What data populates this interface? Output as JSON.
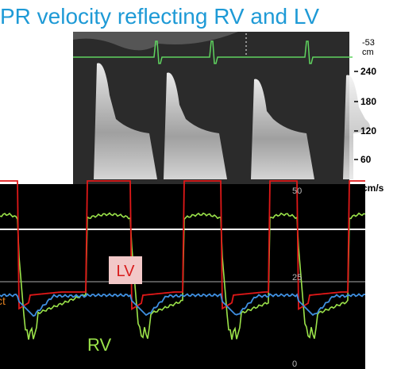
{
  "title": "PR velocity reflecting RV and LV",
  "doppler": {
    "depth_labels": [
      "-53",
      "cm"
    ],
    "velocity_scale": [
      "240",
      "180",
      "120",
      "60"
    ],
    "unit": "cm/s"
  },
  "pressure": {
    "scale": [
      "50",
      "25",
      "0"
    ],
    "labels": {
      "lv": "LV",
      "rv": "RV",
      "cut_off": "ct"
    }
  }
}
